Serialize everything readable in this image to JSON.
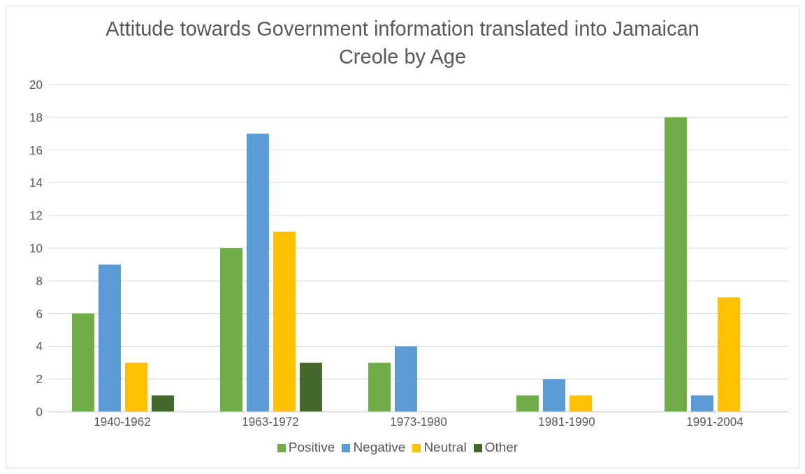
{
  "chart_data": {
    "type": "bar",
    "title": "Attitude towards Government information translated into Jamaican Creole by Age",
    "categories": [
      "1940-1962",
      "1963-1972",
      "1973-1980",
      "1981-1990",
      "1991-2004"
    ],
    "series": [
      {
        "name": "Positive",
        "color": "#70ad47",
        "values": [
          6,
          10,
          3,
          1,
          18
        ]
      },
      {
        "name": "Negative",
        "color": "#5b9bd5",
        "values": [
          9,
          17,
          4,
          2,
          1
        ]
      },
      {
        "name": "Neutral",
        "color": "#ffc000",
        "values": [
          3,
          11,
          0,
          1,
          7
        ]
      },
      {
        "name": "Other",
        "color": "#43682b",
        "values": [
          1,
          3,
          0,
          0,
          0
        ]
      }
    ],
    "ylim": [
      0,
      20
    ],
    "yticks": [
      0,
      2,
      4,
      6,
      8,
      10,
      12,
      14,
      16,
      18,
      20
    ],
    "grid": "y",
    "legend": "bottom"
  }
}
